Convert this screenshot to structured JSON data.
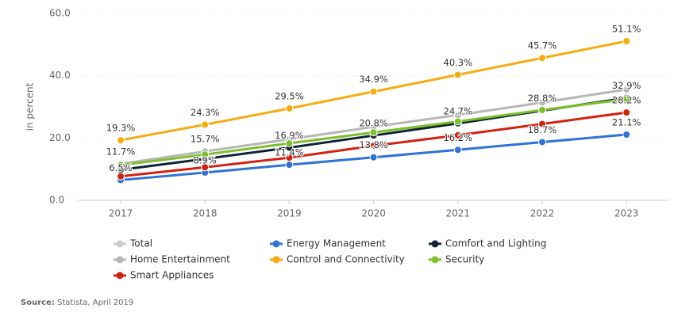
{
  "chart_data": {
    "type": "line",
    "y_label": "in percent",
    "categories": [
      "2017",
      "2018",
      "2019",
      "2020",
      "2021",
      "2022",
      "2023"
    ],
    "ylim": [
      0,
      60
    ],
    "yticks": [
      {
        "value": 0,
        "label": "0.0"
      },
      {
        "value": 20,
        "label": "20.0"
      },
      {
        "value": 40,
        "label": "40.0"
      },
      {
        "value": 60,
        "label": "60.0"
      }
    ],
    "grid": true,
    "series": [
      {
        "name": "Total",
        "color": "#c8c8c8",
        "visible": false,
        "values": [
          null,
          null,
          null,
          null,
          null,
          null,
          null
        ]
      },
      {
        "name": "Energy Management",
        "color": "#2f73d6",
        "values": [
          6.5,
          8.9,
          11.4,
          13.8,
          16.2,
          18.7,
          21.1
        ],
        "value_labels": [
          "6.5%",
          "8.9%",
          "11.4%",
          "13.8%",
          "16.2%",
          "18.7%",
          "21.1%"
        ]
      },
      {
        "name": "Comfort and Lighting",
        "color": "#0d2436",
        "values": [
          9.8,
          13.3,
          16.9,
          20.8,
          24.7,
          28.8,
          32.9
        ],
        "value_labels": [
          null,
          null,
          "16.9%",
          "20.8%",
          "24.7%",
          "28.8%",
          "32.9%"
        ]
      },
      {
        "name": "Home Entertainment",
        "color": "#b7b7b7",
        "values": [
          11.7,
          15.7,
          19.6,
          23.6,
          27.4,
          31.4,
          35.6
        ],
        "value_labels": [
          "11.7%",
          "15.7%",
          null,
          null,
          null,
          null,
          null
        ]
      },
      {
        "name": "Control and Connectivity",
        "color": "#f7ab0f",
        "values": [
          19.3,
          24.3,
          29.5,
          34.9,
          40.3,
          45.7,
          51.1
        ],
        "value_labels": [
          "19.3%",
          "24.3%",
          "29.5%",
          "34.9%",
          "40.3%",
          "45.7%",
          "51.1%"
        ]
      },
      {
        "name": "Security",
        "color": "#7cbf2a",
        "values": [
          11.3,
          14.7,
          18.3,
          21.8,
          25.3,
          29.0,
          32.5
        ]
      },
      {
        "name": "Smart Appliances",
        "color": "#d2210f",
        "values": [
          7.7,
          10.6,
          13.7,
          17.5,
          20.9,
          24.5,
          28.2
        ],
        "value_labels": [
          null,
          null,
          null,
          null,
          null,
          null,
          "28.2%"
        ]
      }
    ],
    "source_label": "Source:",
    "source": "Statista, April 2019"
  }
}
